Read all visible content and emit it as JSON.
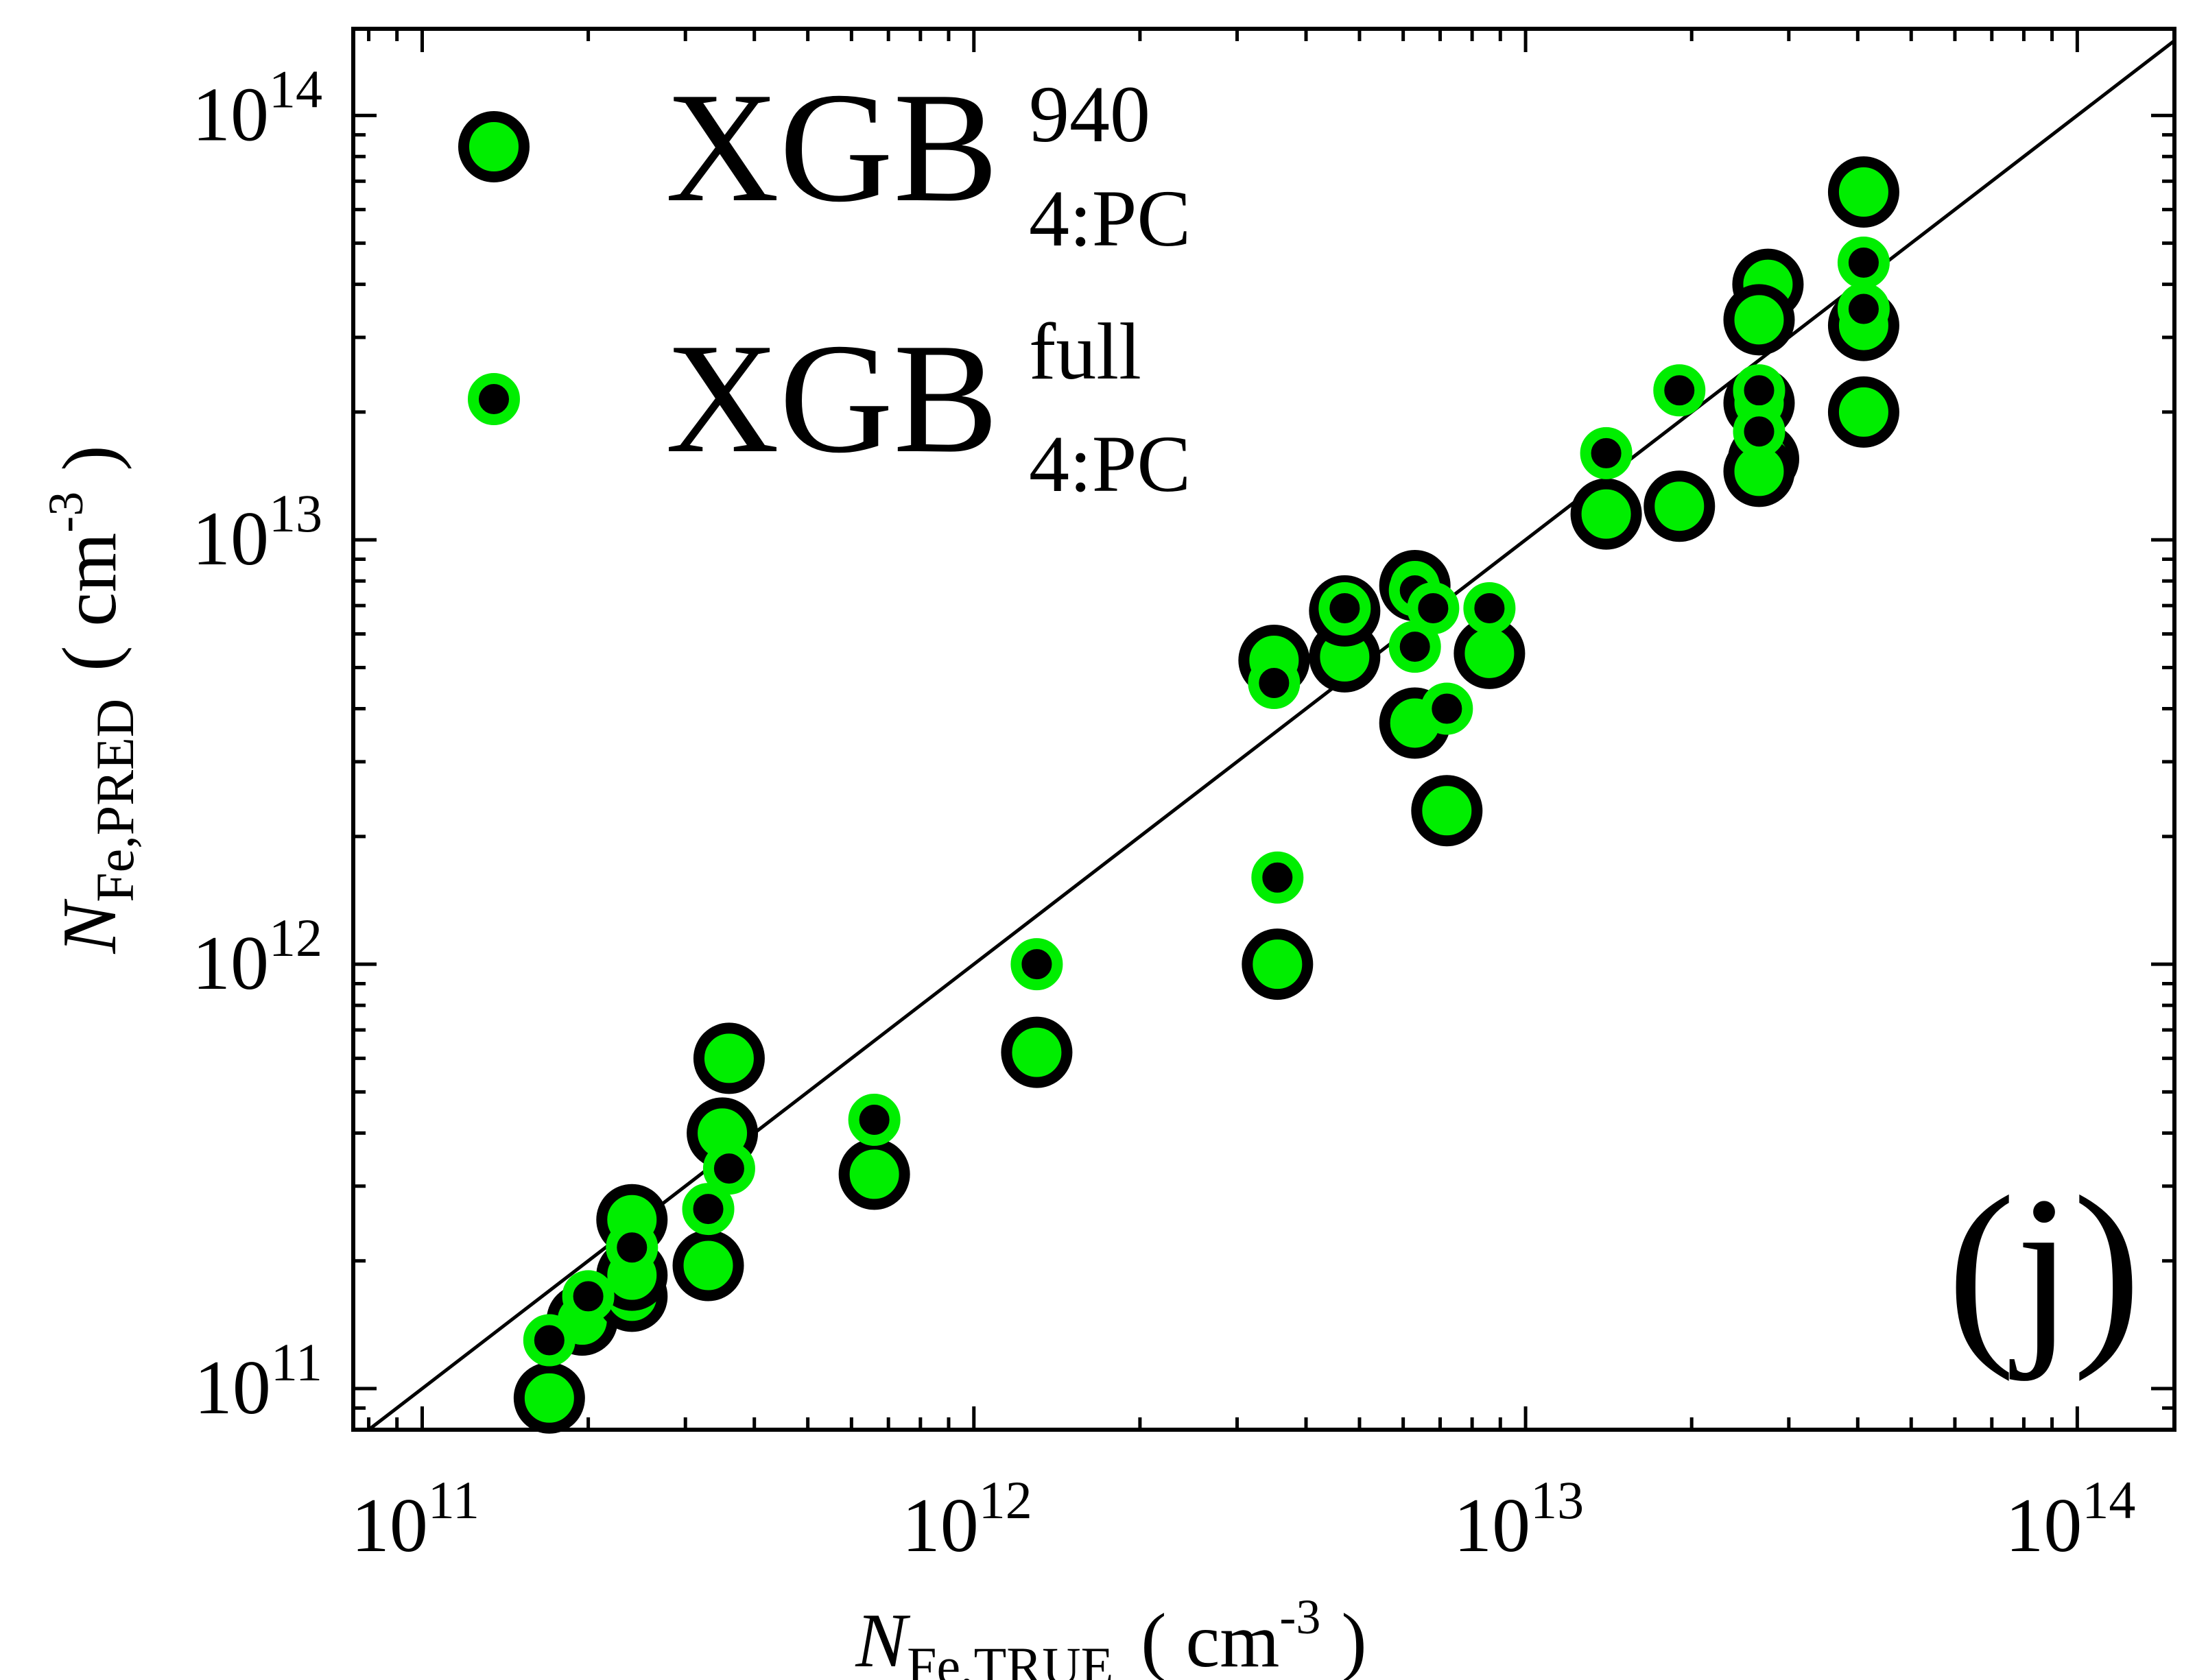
{
  "chart_data": {
    "type": "scatter",
    "xscale": "log",
    "yscale": "log",
    "xlim": [
      75000000000.0,
      150000000000000.0
    ],
    "ylim": [
      80000000000.0,
      160000000000000.0
    ],
    "x_ticks": [
      {
        "value": 100000000000.0,
        "base": "10",
        "exp": "11"
      },
      {
        "value": 1000000000000.0,
        "base": "10",
        "exp": "12"
      },
      {
        "value": 10000000000000.0,
        "base": "10",
        "exp": "13"
      },
      {
        "value": 100000000000000.0,
        "base": "10",
        "exp": "14"
      }
    ],
    "y_ticks": [
      {
        "value": 100000000000.0,
        "base": "10",
        "exp": "11"
      },
      {
        "value": 1000000000000.0,
        "base": "10",
        "exp": "12"
      },
      {
        "value": 10000000000000.0,
        "base": "10",
        "exp": "13"
      },
      {
        "value": 100000000000000.0,
        "base": "10",
        "exp": "14"
      }
    ],
    "xlabel": {
      "main": "N",
      "sub": "Fe,TRUE",
      "unit_open": "( cm",
      "unit_exp": "-3",
      "unit_close": ")"
    },
    "ylabel": {
      "main": "N",
      "sub": "Fe,PRED",
      "unit_open": "( cm",
      "unit_exp": "-3",
      "unit_close": ")"
    },
    "panel_label": "(j)",
    "reference_line": "y = x",
    "legend": {
      "placement": "top-left",
      "entries": [
        {
          "marker": "large",
          "text": "XGB",
          "sup": "940",
          "sub": "4:PC"
        },
        {
          "marker": "small",
          "text": "XGB",
          "sup": "full",
          "sub": "4:PC"
        }
      ]
    },
    "colors": {
      "fill": "#00ee00",
      "edge": "#000000",
      "line": "#000000"
    },
    "series": [
      {
        "name": "XGB 940 4:PC",
        "marker": "large",
        "points": [
          [
            170000000000.0,
            95000000000.0
          ],
          [
            195000000000.0,
            145000000000.0
          ],
          [
            240000000000.0,
            250000000000.0
          ],
          [
            240000000000.0,
            165000000000.0
          ],
          [
            240000000000.0,
            185000000000.0
          ],
          [
            330000000000.0,
            195000000000.0
          ],
          [
            360000000000.0,
            600000000000.0
          ],
          [
            350000000000.0,
            400000000000.0
          ],
          [
            660000000000.0,
            320000000000.0
          ],
          [
            1300000000000.0,
            620000000000.0
          ],
          [
            3550000000000.0,
            1000000000000.0
          ],
          [
            3500000000000.0,
            5200000000000.0
          ],
          [
            4700000000000.0,
            5300000000000.0
          ],
          [
            4700000000000.0,
            6800000000000.0
          ],
          [
            6300000000000.0,
            7800000000000.0
          ],
          [
            6300000000000.0,
            3700000000000.0
          ],
          [
            7200000000000.0,
            2300000000000.0
          ],
          [
            8600000000000.0,
            5400000000000.0
          ],
          [
            14000000000000.0,
            11500000000000.0
          ],
          [
            19000000000000.0,
            12000000000000.0
          ],
          [
            27500000000000.0,
            40000000000000.0
          ],
          [
            26500000000000.0,
            33000000000000.0
          ],
          [
            26500000000000.0,
            21000000000000.0
          ],
          [
            27000000000000.0,
            15500000000000.0
          ],
          [
            26500000000000.0,
            14500000000000.0
          ],
          [
            41000000000000.0,
            66000000000000.0
          ],
          [
            41000000000000.0,
            32000000000000.0
          ],
          [
            41000000000000.0,
            20000000000000.0
          ]
        ]
      },
      {
        "name": "XGB full 4:PC",
        "marker": "small",
        "points": [
          [
            170000000000.0,
            130000000000.0
          ],
          [
            200000000000.0,
            165000000000.0
          ],
          [
            240000000000.0,
            215000000000.0
          ],
          [
            330000000000.0,
            265000000000.0
          ],
          [
            360000000000.0,
            330000000000.0
          ],
          [
            660000000000.0,
            430000000000.0
          ],
          [
            1300000000000.0,
            1000000000000.0
          ],
          [
            3550000000000.0,
            1600000000000.0
          ],
          [
            3500000000000.0,
            4600000000000.0
          ],
          [
            4700000000000.0,
            6900000000000.0
          ],
          [
            6300000000000.0,
            7600000000000.0
          ],
          [
            6300000000000.0,
            5600000000000.0
          ],
          [
            7200000000000.0,
            4000000000000.0
          ],
          [
            6800000000000.0,
            6900000000000.0
          ],
          [
            8600000000000.0,
            6900000000000.0
          ],
          [
            14000000000000.0,
            16000000000000.0
          ],
          [
            19000000000000.0,
            22500000000000.0
          ],
          [
            26500000000000.0,
            22500000000000.0
          ],
          [
            26500000000000.0,
            18000000000000.0
          ],
          [
            41000000000000.0,
            45000000000000.0
          ],
          [
            41000000000000.0,
            35000000000000.0
          ]
        ]
      }
    ]
  }
}
